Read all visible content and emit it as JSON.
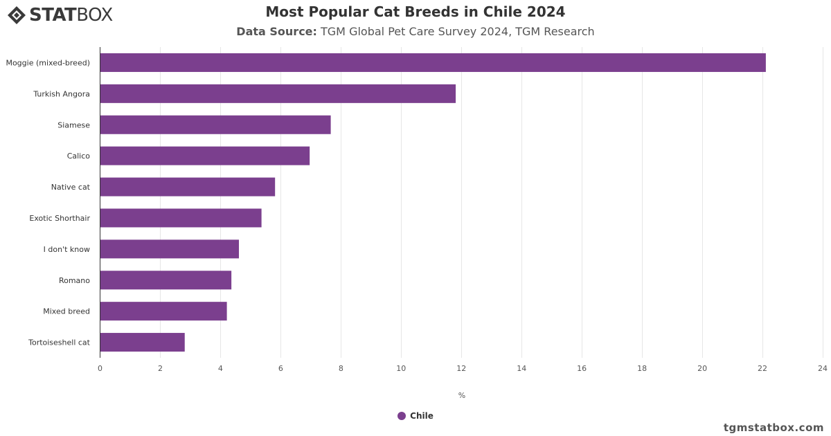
{
  "logo": {
    "stat": "STAT",
    "box": "BOX"
  },
  "header": {
    "title": "Most Popular Cat Breeds in Chile 2024",
    "subtitle_label": "Data Source:",
    "subtitle_text": " TGM Global Pet Care Survey 2024, TGM Research"
  },
  "watermark": "tgmstatbox.com",
  "colors": {
    "bar": "#7b3f8e",
    "grid": "#e6e6e6",
    "axis": "#333333"
  },
  "chart_data": {
    "type": "bar",
    "orientation": "horizontal",
    "categories": [
      "Moggie (mixed-breed)",
      "Turkish Angora",
      "Siamese",
      "Calico",
      "Native cat",
      "Exotic Shorthair",
      "I don't know",
      "Romano",
      "Mixed breed",
      "Tortoiseshell cat"
    ],
    "series": [
      {
        "name": "Chile",
        "values": [
          22.1,
          11.8,
          7.65,
          6.95,
          5.8,
          5.35,
          4.6,
          4.35,
          4.2,
          2.8
        ]
      }
    ],
    "xlabel": "%",
    "ylabel": "",
    "xlim": [
      0,
      24
    ],
    "xticks": [
      0,
      2,
      4,
      6,
      8,
      10,
      12,
      14,
      16,
      18,
      20,
      22,
      24
    ],
    "grid": true,
    "legend_position": "bottom-center"
  }
}
